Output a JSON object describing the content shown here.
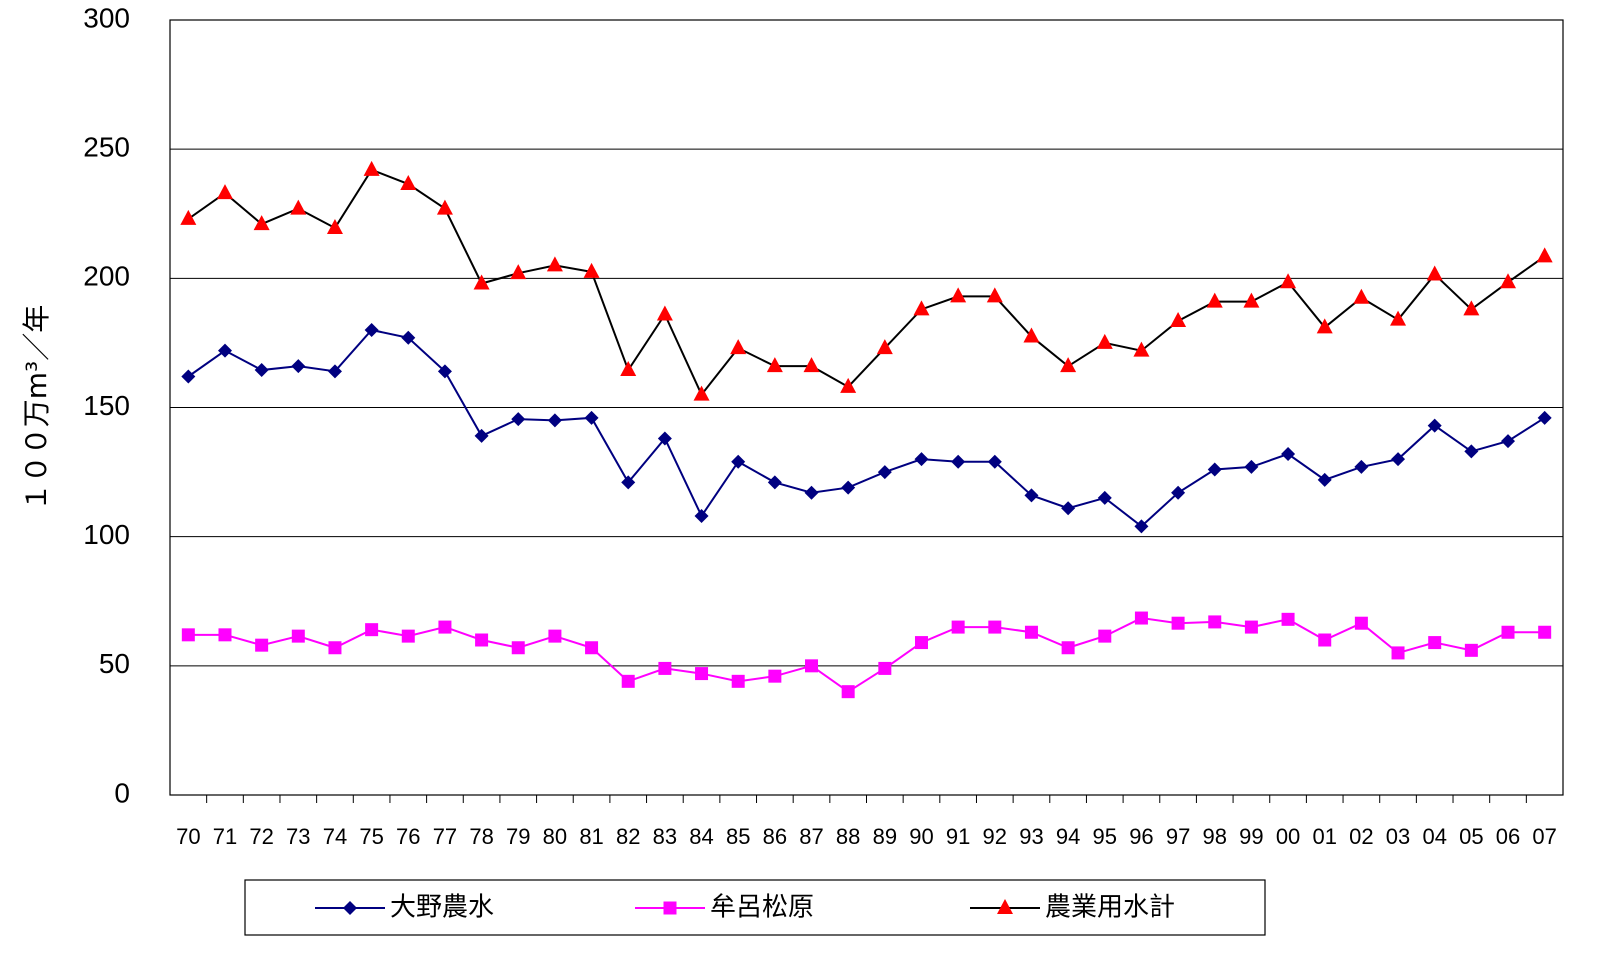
{
  "chart_data": {
    "type": "line",
    "ylabel": "１００万m³／年",
    "categories": [
      "70",
      "71",
      "72",
      "73",
      "74",
      "75",
      "76",
      "77",
      "78",
      "79",
      "80",
      "81",
      "82",
      "83",
      "84",
      "85",
      "86",
      "87",
      "88",
      "89",
      "90",
      "91",
      "92",
      "93",
      "94",
      "95",
      "96",
      "97",
      "98",
      "99",
      "00",
      "01",
      "02",
      "03",
      "04",
      "05",
      "06",
      "07"
    ],
    "series": [
      {
        "name": "大野農水",
        "color": "#000080",
        "marker_color": "#000080",
        "marker": "diamond",
        "values": [
          162,
          172,
          164.5,
          166,
          164,
          180,
          177,
          164,
          139,
          145.5,
          145,
          146,
          121,
          138,
          108,
          129,
          121,
          117,
          119,
          125,
          130,
          129,
          129,
          116,
          111,
          115,
          104,
          117,
          126,
          127,
          132,
          122,
          127,
          130,
          143,
          133,
          137,
          146
        ]
      },
      {
        "name": "牟呂松原",
        "color": "#ff00ff",
        "marker_color": "#ff00ff",
        "marker": "square",
        "values": [
          62,
          62,
          58,
          61.5,
          57,
          64,
          61.5,
          65,
          60,
          57,
          61.5,
          57,
          44,
          49,
          47,
          44,
          46,
          50,
          40,
          49,
          59,
          65,
          65,
          63,
          57,
          61.5,
          68.5,
          66.5,
          67,
          65,
          68,
          60,
          66.5,
          55,
          59,
          56,
          63,
          63
        ]
      },
      {
        "name": "農業用水計",
        "color": "#000000",
        "marker_color": "#ff0000",
        "marker": "triangle",
        "values": [
          223,
          233,
          221,
          227,
          219.5,
          242,
          236.5,
          227,
          198,
          202,
          205,
          202.5,
          164.5,
          186,
          155,
          173,
          166,
          166,
          158,
          173,
          188,
          193,
          193,
          177.5,
          166,
          175,
          172,
          183.5,
          191,
          191,
          198.5,
          181,
          192.5,
          184,
          201.5,
          188,
          198.5,
          208.5
        ]
      }
    ],
    "ylim": [
      0,
      300
    ],
    "yticks": [
      0,
      50,
      100,
      150,
      200,
      250,
      300
    ],
    "grid": true,
    "legend": "bottom"
  }
}
